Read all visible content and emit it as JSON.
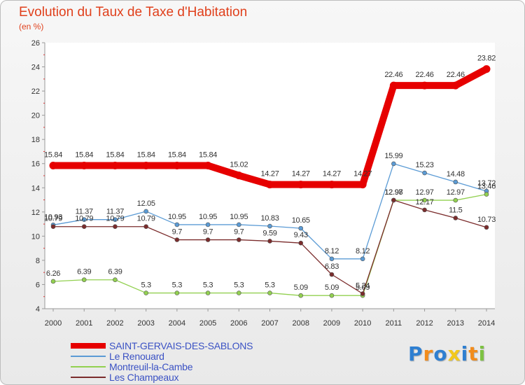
{
  "chart_data": {
    "type": "line",
    "title": "Evolution du Taux de Taxe d'Habitation",
    "unit_label": "(en %)",
    "x": [
      "2000",
      "2001",
      "2002",
      "2003",
      "2004",
      "2005",
      "2006",
      "2007",
      "2008",
      "2009",
      "2010",
      "2011",
      "2012",
      "2013",
      "2014"
    ],
    "ylim": [
      4,
      26
    ],
    "yticks": [
      4,
      6,
      8,
      10,
      12,
      14,
      16,
      18,
      20,
      22,
      24,
      26
    ],
    "grid": false,
    "legend_position": "bottom-left",
    "series": [
      {
        "name": "SAINT-GERVAIS-DES-SABLONS",
        "color": "#e60000",
        "values": [
          15.84,
          15.84,
          15.84,
          15.84,
          15.84,
          15.84,
          15.02,
          14.27,
          14.27,
          14.27,
          14.27,
          22.46,
          22.46,
          22.46,
          23.82
        ],
        "labels": [
          "15.84",
          "15.84",
          "15.84",
          "15.84",
          "15.84",
          "15.84",
          "15.02",
          "14.27",
          "14.27",
          "14.27",
          "14.27",
          "22.46",
          "22.46",
          "22.46",
          "23.82"
        ]
      },
      {
        "name": "Le Renouard",
        "color": "#5b9bd5",
        "values": [
          10.93,
          11.37,
          11.37,
          12.05,
          10.95,
          10.95,
          10.95,
          10.83,
          10.65,
          8.12,
          8.12,
          15.99,
          15.23,
          14.48,
          13.72
        ],
        "labels": [
          "10.93",
          "11.37",
          "11.37",
          "12.05",
          "10.95",
          "10.95",
          "10.95",
          "10.83",
          "10.65",
          "8.12",
          "8.12",
          "15.99",
          "15.23",
          "14.48",
          "13.72"
        ]
      },
      {
        "name": "Montreuil-la-Cambe",
        "color": "#92d050",
        "values": [
          6.26,
          6.39,
          6.39,
          5.3,
          5.3,
          5.3,
          5.3,
          5.3,
          5.09,
          5.09,
          5.09,
          12.97,
          12.97,
          12.97,
          13.46
        ],
        "labels": [
          "6.26",
          "6.39",
          "6.39",
          "5.3",
          "5.3",
          "5.3",
          "5.3",
          "5.3",
          "5.09",
          "5.09",
          "5.09",
          "12.97",
          "12.97",
          "12.97",
          "13.46"
        ]
      },
      {
        "name": "Les Champeaux",
        "color": "#7b2c2c",
        "values": [
          10.79,
          10.79,
          10.79,
          10.79,
          9.7,
          9.7,
          9.7,
          9.59,
          9.43,
          6.83,
          5.24,
          12.98,
          12.17,
          11.5,
          10.73
        ],
        "labels": [
          "10.79",
          "10.79",
          "10.79",
          "10.79",
          "9.7",
          "9.7",
          "9.7",
          "9.59",
          "9.43",
          "6.83",
          "5.24",
          "12.98",
          "12.17",
          "11.5",
          "10.73"
        ]
      }
    ]
  },
  "logo": {
    "letters": [
      "P",
      "r",
      "o",
      "x",
      "i",
      "t",
      "i"
    ],
    "colors": [
      "#2e7fd1",
      "#f28c1c",
      "#2e7fd1",
      "#f2c81c",
      "#2e7fd1",
      "#f28c1c",
      "#7dc242"
    ]
  }
}
